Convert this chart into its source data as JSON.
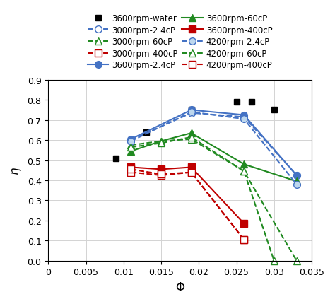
{
  "xlabel": "$\\Phi$",
  "ylabel": "$\\eta$",
  "xlim": [
    0,
    0.035
  ],
  "ylim": [
    0,
    0.9
  ],
  "xticks": [
    0,
    0.005,
    0.01,
    0.015,
    0.02,
    0.025,
    0.03,
    0.035
  ],
  "yticks": [
    0,
    0.1,
    0.2,
    0.3,
    0.4,
    0.5,
    0.6,
    0.7,
    0.8,
    0.9
  ],
  "water_3600": {
    "x": [
      0.009,
      0.013,
      0.019,
      0.025,
      0.027,
      0.03
    ],
    "y": [
      0.51,
      0.64,
      0.75,
      0.79,
      0.79,
      0.75
    ],
    "color": "#000000",
    "marker": "s",
    "markersize": 6,
    "label": "3600rpm-water"
  },
  "rpm3000_24cP": {
    "x": [
      0.011,
      0.019,
      0.026,
      0.033
    ],
    "y": [
      0.6,
      0.735,
      0.715,
      0.425
    ],
    "color": "#4472C4",
    "marker": "o",
    "linestyle": "--",
    "label": "3000rpm-2.4cP",
    "markersize": 7,
    "markerfacecolor": "white"
  },
  "rpm3000_60cP": {
    "x": [
      0.011,
      0.015,
      0.019,
      0.026,
      0.033
    ],
    "y": [
      0.575,
      0.595,
      0.605,
      0.445,
      0.0
    ],
    "color": "#218A21",
    "marker": "^",
    "linestyle": "--",
    "label": "3000rpm-60cP",
    "markersize": 7,
    "markerfacecolor": "white"
  },
  "rpm3000_400cP": {
    "x": [
      0.011,
      0.015,
      0.019,
      0.026
    ],
    "y": [
      0.44,
      0.425,
      0.44,
      0.105
    ],
    "color": "#C00000",
    "marker": "s",
    "linestyle": "--",
    "label": "3000rpm-400cP",
    "markersize": 7,
    "markerfacecolor": "white"
  },
  "rpm3600_24cP": {
    "x": [
      0.011,
      0.019,
      0.026,
      0.033
    ],
    "y": [
      0.605,
      0.75,
      0.725,
      0.425
    ],
    "color": "#4472C4",
    "marker": "o",
    "linestyle": "-",
    "label": "3600rpm-2.4cP",
    "markersize": 7,
    "markerfacecolor": "#4472C4"
  },
  "rpm3600_60cP": {
    "x": [
      0.011,
      0.015,
      0.019,
      0.026,
      0.033
    ],
    "y": [
      0.545,
      0.595,
      0.635,
      0.48,
      0.395
    ],
    "color": "#218A21",
    "marker": "^",
    "linestyle": "-",
    "label": "3600rpm-60cP",
    "markersize": 7,
    "markerfacecolor": "#218A21"
  },
  "rpm3600_400cP": {
    "x": [
      0.011,
      0.015,
      0.019,
      0.026
    ],
    "y": [
      0.465,
      0.455,
      0.465,
      0.185
    ],
    "color": "#C00000",
    "marker": "s",
    "linestyle": "-",
    "label": "3600rpm-400cP",
    "markersize": 7,
    "markerfacecolor": "#C00000"
  },
  "rpm4200_24cP": {
    "x": [
      0.011,
      0.019,
      0.026,
      0.033
    ],
    "y": [
      0.595,
      0.74,
      0.705,
      0.38
    ],
    "color": "#4472C4",
    "marker": "o",
    "linestyle": "--",
    "label": "4200rpm-2.4cP",
    "markersize": 7,
    "markerfacecolor": "#BDD7EE"
  },
  "rpm4200_60cP": {
    "x": [
      0.011,
      0.015,
      0.019,
      0.026,
      0.03
    ],
    "y": [
      0.565,
      0.585,
      0.615,
      0.445,
      0.0
    ],
    "color": "#218A21",
    "marker": "^",
    "linestyle": "--",
    "label": "4200rpm-60cP",
    "markersize": 7,
    "markerfacecolor": "white"
  },
  "rpm4200_400cP": {
    "x": [
      0.011,
      0.015,
      0.019,
      0.026
    ],
    "y": [
      0.455,
      0.43,
      0.44,
      0.105
    ],
    "color": "#C00000",
    "marker": "s",
    "linestyle": "--",
    "label": "4200rpm-400cP",
    "markersize": 7,
    "markerfacecolor": "white"
  }
}
